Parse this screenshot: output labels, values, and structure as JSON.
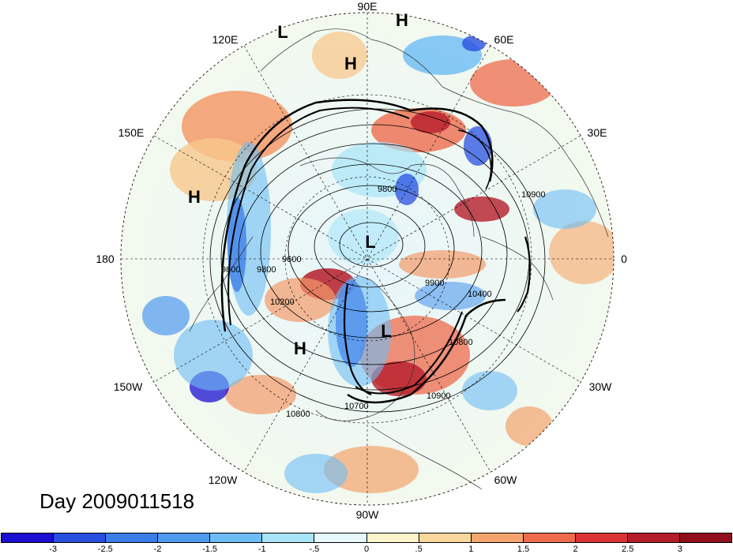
{
  "title": "Day 2009011518",
  "longitude_labels": {
    "n": "90E",
    "nne": "60E",
    "ne": "30E",
    "e": "0",
    "se": "30W",
    "sse": "60W",
    "s": "90W",
    "ssw": "120W",
    "sw": "150W",
    "w": "180",
    "nw": "150E",
    "nnw": "120E"
  },
  "pressure_centers": [
    {
      "name": "high-1",
      "label": "H"
    },
    {
      "name": "low-1",
      "label": "L"
    },
    {
      "name": "high-2",
      "label": "H"
    },
    {
      "name": "high-3",
      "label": "H"
    },
    {
      "name": "low-2",
      "label": "L"
    },
    {
      "name": "low-3",
      "label": "L"
    },
    {
      "name": "high-4",
      "label": "H"
    }
  ],
  "contour_labels": [
    "9800",
    "9600",
    "10200",
    "9900",
    "10400",
    "10800",
    "10900",
    "10700",
    "10800",
    "10900",
    "9800",
    "9800"
  ],
  "colorbar": {
    "ticks": [
      "-3",
      "-2.5",
      "-2",
      "-1.5",
      "-1",
      "-.5",
      "0",
      ".5",
      "1",
      "1.5",
      "2",
      "2.5",
      "3"
    ],
    "colors": [
      "#1a0fd0",
      "#2850e0",
      "#3a7ce8",
      "#4f9aef",
      "#6cbcf5",
      "#a8e4f8",
      "#e6f8fb",
      "#fbf3cc",
      "#f8d79c",
      "#f4a46c",
      "#ee6b4c",
      "#dc3434",
      "#b51d2a",
      "#92101e"
    ]
  }
}
